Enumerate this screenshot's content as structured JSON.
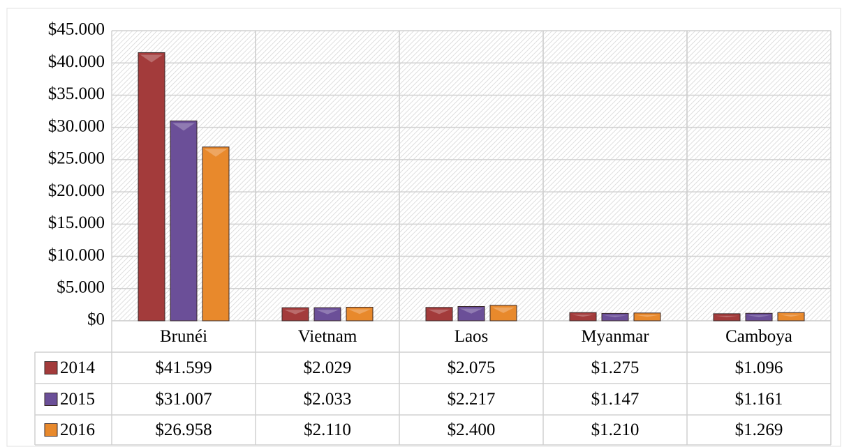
{
  "chart_data": {
    "type": "bar",
    "categories": [
      "Brunéi",
      "Vietnam",
      "Laos",
      "Myanmar",
      "Camboya"
    ],
    "series": [
      {
        "name": "2014",
        "color": "#a33b3b",
        "values": [
          41599,
          2029,
          2075,
          1275,
          1096
        ],
        "value_labels": [
          "$41.599",
          "$2.029",
          "$2.075",
          "$1.275",
          "$1.096"
        ]
      },
      {
        "name": "2015",
        "color": "#6b4f98",
        "values": [
          31007,
          2033,
          2217,
          1147,
          1161
        ],
        "value_labels": [
          "$31.007",
          "$2.033",
          "$2.217",
          "$1.147",
          "$1.161"
        ]
      },
      {
        "name": "2016",
        "color": "#e8892c",
        "values": [
          26958,
          2110,
          2400,
          1210,
          1269
        ],
        "value_labels": [
          "$26.958",
          "$2.110",
          "$2.400",
          "$1.210",
          "$1.269"
        ]
      }
    ],
    "ylim": [
      0,
      45000
    ],
    "yticks": [
      {
        "value": 0,
        "label": "$0"
      },
      {
        "value": 5000,
        "label": "$5.000"
      },
      {
        "value": 10000,
        "label": "$10.000"
      },
      {
        "value": 15000,
        "label": "$15.000"
      },
      {
        "value": 20000,
        "label": "$20.000"
      },
      {
        "value": 25000,
        "label": "$25.000"
      },
      {
        "value": 30000,
        "label": "$30.000"
      },
      {
        "value": 35000,
        "label": "$35.000"
      },
      {
        "value": 40000,
        "label": "$40.000"
      },
      {
        "value": 45000,
        "label": "$45.000"
      }
    ],
    "grid": true
  }
}
